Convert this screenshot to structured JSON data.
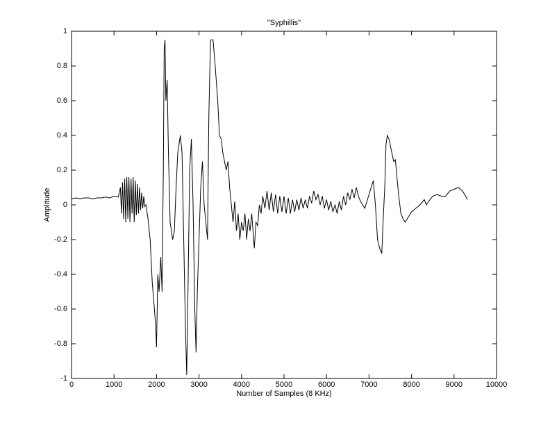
{
  "chart_data": {
    "type": "line",
    "title": "\"Syphillis\"",
    "xlabel": "Number of Samples (8 KHz)",
    "ylabel": "Amplitude",
    "x": [
      0,
      100,
      200,
      300,
      400,
      500,
      600,
      700,
      800,
      900,
      1000,
      1100,
      1150,
      1175,
      1200,
      1225,
      1250,
      1275,
      1300,
      1325,
      1350,
      1375,
      1400,
      1425,
      1450,
      1475,
      1500,
      1525,
      1550,
      1575,
      1600,
      1625,
      1650,
      1675,
      1700,
      1725,
      1750,
      1800,
      1850,
      1900,
      1950,
      1980,
      2000,
      2030,
      2060,
      2100,
      2130,
      2160,
      2180,
      2200,
      2220,
      2250,
      2280,
      2320,
      2380,
      2420,
      2460,
      2500,
      2560,
      2600,
      2640,
      2680,
      2710,
      2740,
      2780,
      2820,
      2860,
      2900,
      2930,
      2960,
      3000,
      3040,
      3080,
      3120,
      3160,
      3200,
      3230,
      3270,
      3330,
      3380,
      3440,
      3480,
      3520,
      3560,
      3600,
      3640,
      3680,
      3720,
      3760,
      3800,
      3840,
      3880,
      3920,
      3960,
      4000,
      4040,
      4080,
      4120,
      4160,
      4200,
      4240,
      4300,
      4340,
      4380,
      4420,
      4460,
      4500,
      4550,
      4600,
      4650,
      4700,
      4750,
      4800,
      4850,
      4900,
      4950,
      5000,
      5050,
      5100,
      5150,
      5200,
      5250,
      5300,
      5350,
      5400,
      5450,
      5500,
      5550,
      5600,
      5650,
      5700,
      5750,
      5800,
      5850,
      5900,
      5950,
      6000,
      6050,
      6100,
      6150,
      6200,
      6250,
      6300,
      6350,
      6400,
      6450,
      6500,
      6550,
      6600,
      6650,
      6700,
      6750,
      6800,
      6850,
      6900,
      6950,
      7000,
      7050,
      7100,
      7150,
      7200,
      7250,
      7300,
      7330,
      7370,
      7400,
      7430,
      7470,
      7520,
      7580,
      7620,
      7660,
      7700,
      7750,
      7800,
      7850,
      7900,
      7950,
      8000,
      8100,
      8200,
      8300,
      8350,
      8400,
      8500,
      8600,
      8700,
      8800,
      8900,
      9000,
      9100,
      9200,
      9320
    ],
    "series": [
      {
        "color": "#000000",
        "values": [
          0.035,
          0.04,
          0.035,
          0.04,
          0.04,
          0.035,
          0.04,
          0.04,
          0.045,
          0.04,
          0.05,
          0.045,
          0.1,
          -0.05,
          0.13,
          -0.08,
          0.15,
          -0.1,
          0.16,
          -0.08,
          0.16,
          -0.1,
          0.15,
          -0.05,
          0.16,
          -0.1,
          0.14,
          -0.06,
          0.12,
          -0.05,
          0.1,
          -0.03,
          0.07,
          -0.02,
          0.05,
          -0.01,
          0,
          -0.08,
          -0.2,
          -0.45,
          -0.6,
          -0.7,
          -0.82,
          -0.4,
          -0.5,
          -0.3,
          -0.5,
          0.2,
          0.9,
          0.95,
          0.6,
          0.72,
          0.3,
          -0.1,
          -0.2,
          -0.15,
          0.1,
          0.3,
          0.4,
          0.3,
          -0.2,
          -0.7,
          -0.98,
          -0.5,
          0.2,
          0.38,
          0,
          -0.6,
          -0.85,
          -0.5,
          -0.2,
          0.1,
          0.25,
          0,
          -0.1,
          -0.2,
          0.5,
          0.95,
          0.95,
          0.8,
          0.6,
          0.4,
          0.38,
          0.3,
          0.25,
          0.2,
          0.25,
          0.1,
          0,
          -0.1,
          0.02,
          -0.15,
          -0.05,
          -0.2,
          -0.1,
          -0.15,
          -0.05,
          -0.2,
          -0.08,
          -0.15,
          -0.05,
          -0.25,
          -0.1,
          -0.12,
          0,
          -0.05,
          0.05,
          -0.02,
          0.08,
          -0.03,
          0.07,
          -0.04,
          0.06,
          -0.05,
          0.05,
          -0.04,
          0.05,
          -0.05,
          0.04,
          -0.05,
          0.03,
          -0.04,
          0.03,
          -0.03,
          0.04,
          -0.02,
          0.03,
          -0.02,
          0.05,
          0.01,
          0.08,
          0.03,
          0.06,
          0,
          0.05,
          -0.02,
          0.03,
          -0.03,
          0.02,
          -0.04,
          0,
          -0.05,
          0.02,
          -0.03,
          0.05,
          0,
          0.07,
          0.03,
          0.09,
          0.04,
          0.1,
          0.05,
          0.02,
          0,
          -0.02,
          0.02,
          0.06,
          0.1,
          0.14,
          0,
          -0.2,
          -0.25,
          -0.28,
          -0.1,
          0.1,
          0.35,
          0.4,
          0.38,
          0.32,
          0.25,
          0.26,
          0.15,
          0.05,
          -0.05,
          -0.08,
          -0.1,
          -0.08,
          -0.06,
          -0.04,
          -0.02,
          0,
          0.03,
          0,
          0.02,
          0.05,
          0.06,
          0.05,
          0.05,
          0.08,
          0.09,
          0.1,
          0.08,
          0.03
        ]
      }
    ],
    "xlim": [
      0,
      10000
    ],
    "xticks": [
      0,
      1000,
      2000,
      3000,
      4000,
      5000,
      6000,
      7000,
      8000,
      9000,
      10000
    ],
    "ylim": [
      -1,
      1
    ],
    "yticks": [
      -1,
      -0.8,
      -0.6,
      -0.4,
      -0.2,
      0,
      0.2,
      0.4,
      0.6,
      0.8,
      1
    ]
  }
}
